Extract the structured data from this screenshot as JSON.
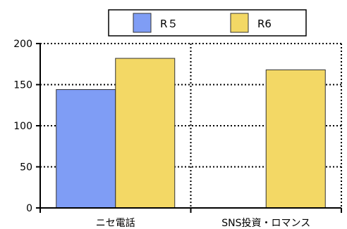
{
  "chart_data": {
    "type": "bar",
    "categories": [
      "ニセ電話",
      "SNS投資・ロマンス"
    ],
    "series": [
      {
        "name": "R５",
        "values": [
          144,
          null
        ],
        "color": "#7f9df5"
      },
      {
        "name": "R6",
        "values": [
          182,
          168
        ],
        "color": "#f3d865"
      }
    ],
    "ylim": [
      0,
      200
    ],
    "yticks": [
      0,
      50,
      100,
      150,
      200
    ],
    "grid": "dotted",
    "legend_position": "top-center"
  }
}
